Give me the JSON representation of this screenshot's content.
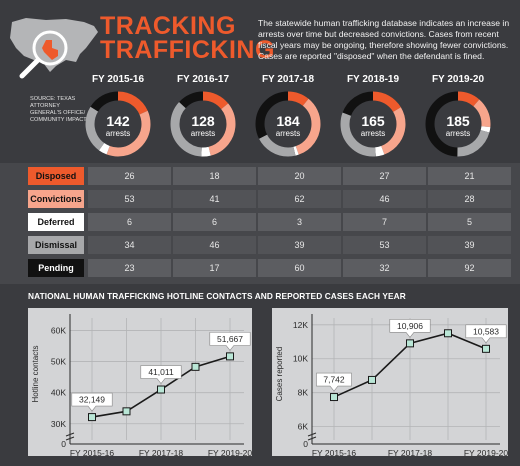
{
  "title": {
    "line1": "TRACKING",
    "line2": "TRAFFICKING"
  },
  "intro": "The statewide human trafficking database indicates an increase in arrests over time but decreased convictions. Cases from recent fiscal years may be ongoing, therefore showing fewer convictions. Cases are reported \"disposed\" when the defendant is fined.",
  "source": "SOURCE: TEXAS ATTORNEY GENERAL'S OFFICE/ COMMUNITY IMPACT",
  "arrest_unit": "arrests",
  "colors": {
    "disposed": "#ee5a2c",
    "convictions": "#f7a58c",
    "deferred": "#ffffff",
    "dismissal": "#a7a8aa",
    "pending": "#111111",
    "accent": "#ee5a2c"
  },
  "icons": {
    "map": "texas-map-icon",
    "magnifier": "magnifying-glass-icon"
  },
  "years": [
    "FY 2015-16",
    "FY 2016-17",
    "FY 2017-18",
    "FY 2018-19",
    "FY 2019-20"
  ],
  "arrests": [
    142,
    128,
    184,
    165,
    185
  ],
  "table": {
    "rows": [
      {
        "label": "Disposed",
        "values": [
          "26",
          "18",
          "20",
          "27",
          "21"
        ]
      },
      {
        "label": "Convictions",
        "values": [
          "53",
          "41",
          "62",
          "46",
          "28"
        ]
      },
      {
        "label": "Deferred",
        "values": [
          "6",
          "6",
          "3",
          "7",
          "5"
        ]
      },
      {
        "label": "Dismissal",
        "values": [
          "34",
          "46",
          "39",
          "53",
          "39"
        ]
      },
      {
        "label": "Pending",
        "values": [
          "23",
          "17",
          "60",
          "32",
          "92"
        ]
      }
    ]
  },
  "subhead": "NATIONAL HUMAN TRAFFICKING HOTLINE CONTACTS AND REPORTED CASES EACH YEAR",
  "chart_data": [
    {
      "type": "line",
      "x": [
        "FY 2015-16",
        "FY 2016-17",
        "FY 2017-18",
        "FY 2018-19",
        "FY 2019-20"
      ],
      "values": [
        32149,
        34000,
        41011,
        48300,
        51667
      ],
      "ylabel": "Hotline contacts",
      "ylim": [
        28000,
        64000
      ],
      "yticks": [
        30000,
        40000,
        50000,
        60000
      ],
      "ytick_labels": [
        "30K",
        "40K",
        "50K",
        "60K"
      ],
      "zero_label": "0",
      "xtick_labels": [
        "FY 2015-16",
        "FY 2017-18",
        "FY 2019-20"
      ],
      "labels": [
        {
          "index": 0,
          "text": "32,149"
        },
        {
          "index": 2,
          "text": "41,011"
        },
        {
          "index": 4,
          "text": "51,667"
        }
      ]
    },
    {
      "type": "line",
      "x": [
        "FY 2015-16",
        "FY 2016-17",
        "FY 2017-18",
        "FY 2018-19",
        "FY 2019-20"
      ],
      "values": [
        7742,
        8750,
        10906,
        11500,
        10583
      ],
      "ylabel": "Cases reported",
      "ylim": [
        5800,
        12400
      ],
      "yticks": [
        6000,
        8000,
        10000,
        12000
      ],
      "ytick_labels": [
        "6K",
        "8K",
        "10K",
        "12K"
      ],
      "zero_label": "0",
      "xtick_labels": [
        "FY 2015-16",
        "FY 2017-18",
        "FY 2019-20"
      ],
      "labels": [
        {
          "index": 0,
          "text": "7,742"
        },
        {
          "index": 2,
          "text": "10,906"
        },
        {
          "index": 4,
          "text": "10,583"
        }
      ]
    }
  ]
}
